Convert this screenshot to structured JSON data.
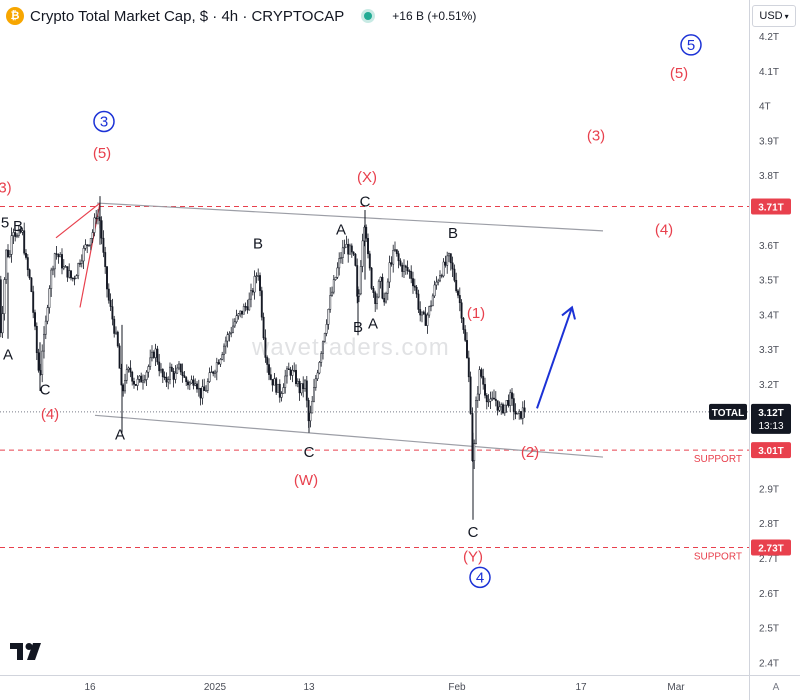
{
  "header": {
    "title": "Crypto Total Market Cap, $ · 4h · CRYPTOCAP",
    "icon_name": "crypto-coin-icon",
    "change": "+16 B (+0.51%)"
  },
  "currency_button": {
    "label": "USD",
    "icon": "chevron-down-icon"
  },
  "watermark": "wavetraders.com",
  "auto_label": "A",
  "price_axis": {
    "ticks": [
      "4.2T",
      "4.1T",
      "4T",
      "3.9T",
      "3.8T",
      "3.7T",
      "3.6T",
      "3.5T",
      "3.4T",
      "3.3T",
      "3.2T",
      "3.1T",
      "3T",
      "2.9T",
      "2.8T",
      "2.7T",
      "2.6T",
      "2.5T",
      "2.4T"
    ],
    "last_price": {
      "symbol": "TOTAL",
      "value": "3.12T",
      "countdown": "13:13"
    },
    "level_tags": [
      {
        "value": "3.71T",
        "price": 3.71
      },
      {
        "value": "3.01T",
        "price": 3.01,
        "note": "SUPPORT"
      },
      {
        "value": "2.73T",
        "price": 2.73,
        "note": "SUPPORT"
      }
    ]
  },
  "time_axis": {
    "ticks": [
      "16",
      "2025",
      "13",
      "Feb",
      "17",
      "Mar"
    ]
  },
  "chart_data": {
    "type": "candlestick",
    "symbol": "TOTAL",
    "timeframe": "4h",
    "ylim": [
      2.38,
      4.24
    ],
    "y_unit": "T USD",
    "price_path": [
      [
        -1,
        3.5
      ],
      [
        1,
        3.34
      ],
      [
        6,
        3.58
      ],
      [
        10,
        3.57
      ],
      [
        12,
        3.66
      ],
      [
        17,
        3.62
      ],
      [
        22,
        3.64
      ],
      [
        26,
        3.55
      ],
      [
        31,
        3.48
      ],
      [
        35,
        3.35
      ],
      [
        38,
        3.25
      ],
      [
        40,
        3.22
      ],
      [
        42,
        3.3
      ],
      [
        45,
        3.34
      ],
      [
        47,
        3.42
      ],
      [
        50,
        3.5
      ],
      [
        55,
        3.58
      ],
      [
        60,
        3.56
      ],
      [
        64,
        3.53
      ],
      [
        68,
        3.52
      ],
      [
        72,
        3.5
      ],
      [
        76,
        3.52
      ],
      [
        80,
        3.56
      ],
      [
        85,
        3.59
      ],
      [
        90,
        3.62
      ],
      [
        93,
        3.64
      ],
      [
        96,
        3.69
      ],
      [
        100,
        3.67
      ],
      [
        104,
        3.55
      ],
      [
        108,
        3.45
      ],
      [
        113,
        3.38
      ],
      [
        118,
        3.3
      ],
      [
        122,
        3.16
      ],
      [
        125,
        3.22
      ],
      [
        130,
        3.24
      ],
      [
        135,
        3.2
      ],
      [
        140,
        3.21
      ],
      [
        145,
        3.23
      ],
      [
        150,
        3.26
      ],
      [
        155,
        3.3
      ],
      [
        160,
        3.24
      ],
      [
        165,
        3.2
      ],
      [
        170,
        3.24
      ],
      [
        175,
        3.22
      ],
      [
        180,
        3.25
      ],
      [
        185,
        3.21
      ],
      [
        190,
        3.2
      ],
      [
        195,
        3.22
      ],
      [
        200,
        3.17
      ],
      [
        205,
        3.18
      ],
      [
        210,
        3.22
      ],
      [
        215,
        3.25
      ],
      [
        220,
        3.28
      ],
      [
        225,
        3.32
      ],
      [
        230,
        3.35
      ],
      [
        235,
        3.38
      ],
      [
        240,
        3.4
      ],
      [
        245,
        3.42
      ],
      [
        250,
        3.44
      ],
      [
        255,
        3.5
      ],
      [
        258,
        3.53
      ],
      [
        262,
        3.4
      ],
      [
        265,
        3.3
      ],
      [
        270,
        3.22
      ],
      [
        275,
        3.2
      ],
      [
        280,
        3.17
      ],
      [
        285,
        3.22
      ],
      [
        290,
        3.24
      ],
      [
        295,
        3.22
      ],
      [
        300,
        3.18
      ],
      [
        305,
        3.2
      ],
      [
        309,
        3.08
      ],
      [
        312,
        3.14
      ],
      [
        316,
        3.22
      ],
      [
        320,
        3.28
      ],
      [
        325,
        3.36
      ],
      [
        330,
        3.44
      ],
      [
        335,
        3.5
      ],
      [
        340,
        3.56
      ],
      [
        345,
        3.6
      ],
      [
        350,
        3.58
      ],
      [
        355,
        3.55
      ],
      [
        358,
        3.4
      ],
      [
        360,
        3.52
      ],
      [
        363,
        3.64
      ],
      [
        365,
        3.68
      ],
      [
        368,
        3.56
      ],
      [
        372,
        3.48
      ],
      [
        376,
        3.44
      ],
      [
        380,
        3.5
      ],
      [
        385,
        3.42
      ],
      [
        390,
        3.55
      ],
      [
        395,
        3.58
      ],
      [
        400,
        3.54
      ],
      [
        405,
        3.53
      ],
      [
        410,
        3.52
      ],
      [
        415,
        3.48
      ],
      [
        420,
        3.4
      ],
      [
        425,
        3.38
      ],
      [
        430,
        3.42
      ],
      [
        435,
        3.48
      ],
      [
        440,
        3.52
      ],
      [
        445,
        3.54
      ],
      [
        449,
        3.56
      ],
      [
        453,
        3.52
      ],
      [
        458,
        3.46
      ],
      [
        462,
        3.4
      ],
      [
        466,
        3.3
      ],
      [
        470,
        3.18
      ],
      [
        473,
        2.94
      ],
      [
        476,
        3.14
      ],
      [
        480,
        3.24
      ],
      [
        485,
        3.18
      ],
      [
        490,
        3.14
      ],
      [
        495,
        3.16
      ],
      [
        500,
        3.12
      ],
      [
        505,
        3.14
      ],
      [
        510,
        3.16
      ],
      [
        515,
        3.12
      ],
      [
        518,
        3.1
      ],
      [
        522,
        3.12
      ],
      [
        526,
        3.13
      ]
    ],
    "trendlines": [
      {
        "name": "upper-channel",
        "from": [
          97,
          3.72
        ],
        "to": [
          603,
          3.64
        ],
        "color": "#9c9ea6"
      },
      {
        "name": "lower-channel",
        "from": [
          95,
          3.11
        ],
        "to": [
          603,
          2.99
        ],
        "color": "#9c9ea6"
      },
      {
        "name": "wave3-line-a",
        "from": [
          56,
          3.62
        ],
        "to": [
          100,
          3.72
        ],
        "color": "#e8404d"
      },
      {
        "name": "wave3-line-b",
        "from": [
          80,
          3.42
        ],
        "to": [
          100,
          3.72
        ],
        "color": "#e8404d"
      }
    ],
    "levels": [
      {
        "price": 3.71,
        "color": "#e8404d"
      },
      {
        "price": 3.01,
        "color": "#e8404d",
        "label": "SUPPORT"
      },
      {
        "price": 2.73,
        "color": "#e8404d",
        "label": "SUPPORT"
      }
    ],
    "projection_arrow": {
      "from": [
        537,
        3.13
      ],
      "to": [
        572,
        3.42
      ],
      "color": "#1c32d6"
    },
    "wave_labels": [
      {
        "text": "3)",
        "t": 5,
        "p": 3.75,
        "color": "#e8404d"
      },
      {
        "text": "5",
        "t": 5,
        "p": 3.65,
        "color": "#131722"
      },
      {
        "text": "B",
        "t": 18,
        "p": 3.64,
        "color": "#131722"
      },
      {
        "text": "A",
        "t": 8,
        "p": 3.27,
        "color": "#131722"
      },
      {
        "text": "C",
        "t": 45,
        "p": 3.17,
        "color": "#131722"
      },
      {
        "text": "(4)",
        "t": 50,
        "p": 3.1,
        "color": "#e8404d"
      },
      {
        "text": "3",
        "t": 104,
        "p": 3.94,
        "color": "#1c32d6",
        "circled": true
      },
      {
        "text": "(5)",
        "t": 102,
        "p": 3.85,
        "color": "#e8404d"
      },
      {
        "text": "A",
        "t": 120,
        "p": 3.04,
        "color": "#131722"
      },
      {
        "text": "B",
        "t": 258,
        "p": 3.59,
        "color": "#131722"
      },
      {
        "text": "C",
        "t": 309,
        "p": 2.99,
        "color": "#131722"
      },
      {
        "text": "(W)",
        "t": 306,
        "p": 2.91,
        "color": "#e8404d"
      },
      {
        "text": "(X)",
        "t": 367,
        "p": 3.78,
        "color": "#e8404d"
      },
      {
        "text": "C",
        "t": 365,
        "p": 3.71,
        "color": "#131722"
      },
      {
        "text": "A",
        "t": 341,
        "p": 3.63,
        "color": "#131722"
      },
      {
        "text": "B",
        "t": 358,
        "p": 3.35,
        "color": "#131722"
      },
      {
        "text": "A",
        "t": 373,
        "p": 3.36,
        "color": "#131722"
      },
      {
        "text": "B",
        "t": 453,
        "p": 3.62,
        "color": "#131722"
      },
      {
        "text": "(1)",
        "t": 476,
        "p": 3.39,
        "color": "#e8404d"
      },
      {
        "text": "(2)",
        "t": 530,
        "p": 2.99,
        "color": "#e8404d"
      },
      {
        "text": "C",
        "t": 473,
        "p": 2.76,
        "color": "#131722"
      },
      {
        "text": "(Y)",
        "t": 473,
        "p": 2.69,
        "color": "#e8404d"
      },
      {
        "text": "4",
        "t": 480,
        "p": 2.63,
        "color": "#1c32d6",
        "circled": true
      },
      {
        "text": "(3)",
        "t": 596,
        "p": 3.9,
        "color": "#e8404d"
      },
      {
        "text": "(4)",
        "t": 664,
        "p": 3.63,
        "color": "#e8404d"
      },
      {
        "text": "(5)",
        "t": 679,
        "p": 4.08,
        "color": "#e8404d"
      },
      {
        "text": "5",
        "t": 691,
        "p": 4.16,
        "color": "#1c32d6",
        "circled": true
      }
    ]
  }
}
